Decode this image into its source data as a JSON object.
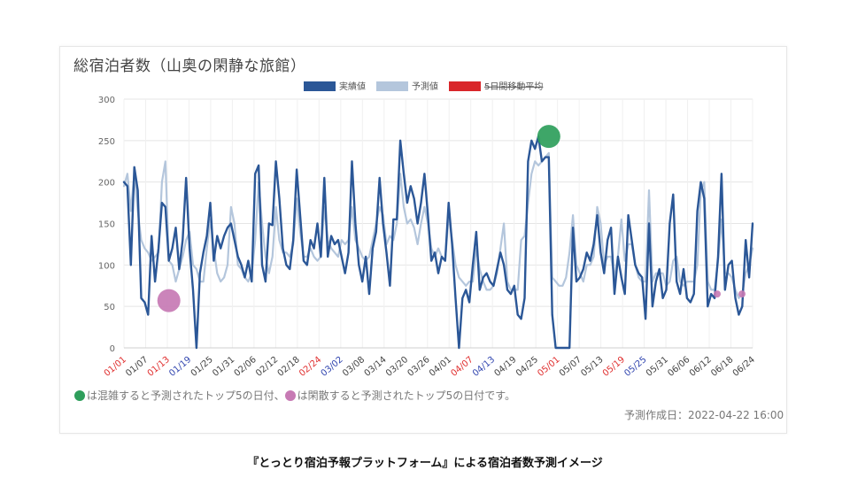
{
  "chart_data": {
    "type": "line",
    "title": "総宿泊者数（山奥の閑静な旅館）",
    "ylim": [
      0,
      300
    ],
    "yticks": [
      "300",
      "250",
      "200",
      "150",
      "100",
      "50",
      "0"
    ],
    "xticks": [
      {
        "label": "01/01",
        "color": "red"
      },
      {
        "label": "01/07",
        "color": "black"
      },
      {
        "label": "01/13",
        "color": "red"
      },
      {
        "label": "01/19",
        "color": "blue"
      },
      {
        "label": "01/25",
        "color": "black"
      },
      {
        "label": "01/31",
        "color": "black"
      },
      {
        "label": "02/06",
        "color": "black"
      },
      {
        "label": "02/12",
        "color": "black"
      },
      {
        "label": "02/18",
        "color": "black"
      },
      {
        "label": "02/24",
        "color": "red"
      },
      {
        "label": "03/02",
        "color": "blue"
      },
      {
        "label": "03/08",
        "color": "black"
      },
      {
        "label": "03/14",
        "color": "black"
      },
      {
        "label": "03/20",
        "color": "black"
      },
      {
        "label": "03/26",
        "color": "black"
      },
      {
        "label": "04/01",
        "color": "black"
      },
      {
        "label": "04/07",
        "color": "red"
      },
      {
        "label": "04/13",
        "color": "blue"
      },
      {
        "label": "04/19",
        "color": "black"
      },
      {
        "label": "04/25",
        "color": "black"
      },
      {
        "label": "05/01",
        "color": "red"
      },
      {
        "label": "05/07",
        "color": "black"
      },
      {
        "label": "05/13",
        "color": "black"
      },
      {
        "label": "05/19",
        "color": "red"
      },
      {
        "label": "05/25",
        "color": "blue"
      },
      {
        "label": "05/31",
        "color": "black"
      },
      {
        "label": "06/06",
        "color": "black"
      },
      {
        "label": "06/12",
        "color": "black"
      },
      {
        "label": "06/18",
        "color": "black"
      },
      {
        "label": "06/24",
        "color": "black"
      }
    ],
    "legend": [
      {
        "name": "実績値",
        "color": "#2b5797",
        "struck": false
      },
      {
        "name": "予測値",
        "color": "#b4c6dc",
        "struck": false
      },
      {
        "name": "5日間移動平均",
        "color": "#d9262a",
        "struck": true
      }
    ],
    "series": [
      {
        "name": "実績値",
        "color": "#2b5797",
        "values": [
          200,
          195,
          100,
          218,
          190,
          60,
          55,
          40,
          135,
          80,
          120,
          175,
          170,
          105,
          120,
          145,
          95,
          130,
          205,
          120,
          70,
          0,
          90,
          115,
          135,
          175,
          105,
          135,
          120,
          135,
          145,
          150,
          130,
          110,
          100,
          85,
          105,
          80,
          210,
          220,
          100,
          80,
          150,
          148,
          225,
          180,
          120,
          100,
          95,
          130,
          215,
          160,
          105,
          100,
          130,
          120,
          150,
          110,
          205,
          110,
          135,
          125,
          130,
          110,
          90,
          115,
          225,
          150,
          100,
          80,
          110,
          65,
          120,
          140,
          205,
          150,
          115,
          75,
          155,
          155,
          250,
          210,
          175,
          195,
          180,
          150,
          175,
          210,
          160,
          105,
          115,
          90,
          110,
          105,
          175,
          125,
          60,
          0,
          60,
          70,
          55,
          100,
          140,
          70,
          85,
          90,
          80,
          75,
          95,
          115,
          100,
          70,
          65,
          75,
          40,
          35,
          60,
          225,
          250,
          240,
          255,
          225,
          230,
          230,
          40,
          0,
          0,
          0,
          0,
          0,
          145,
          80,
          85,
          95,
          115,
          105,
          125,
          160,
          115,
          90,
          130,
          145,
          65,
          110,
          85,
          65,
          160,
          130,
          100,
          90,
          85,
          35,
          150,
          50,
          80,
          95,
          60,
          70,
          150,
          185,
          80,
          65,
          95,
          60,
          55,
          65,
          165,
          200,
          180,
          50,
          65,
          60,
          110,
          210,
          70,
          100,
          105,
          60,
          40,
          50,
          130,
          85,
          150
        ]
      },
      {
        "name": "予測値",
        "color": "#b4c6dc",
        "values": [
          195,
          210,
          165,
          210,
          165,
          130,
          120,
          115,
          105,
          110,
          115,
          200,
          225,
          105,
          100,
          80,
          95,
          110,
          130,
          140,
          100,
          95,
          80,
          80,
          120,
          155,
          120,
          90,
          80,
          85,
          100,
          170,
          150,
          100,
          95,
          85,
          80,
          90,
          130,
          200,
          150,
          110,
          90,
          110,
          170,
          130,
          115,
          115,
          110,
          125,
          180,
          140,
          110,
          110,
          120,
          110,
          105,
          110,
          170,
          130,
          120,
          115,
          110,
          130,
          125,
          130,
          170,
          130,
          120,
          110,
          105,
          110,
          130,
          150,
          170,
          160,
          125,
          135,
          130,
          150,
          210,
          170,
          150,
          155,
          145,
          125,
          150,
          170,
          150,
          120,
          110,
          120,
          110,
          105,
          160,
          130,
          100,
          85,
          80,
          75,
          80,
          80,
          120,
          95,
          80,
          70,
          70,
          75,
          90,
          120,
          150,
          80,
          70,
          70,
          70,
          130,
          135,
          175,
          210,
          225,
          220,
          225,
          230,
          235,
          85,
          80,
          75,
          75,
          85,
          115,
          160,
          100,
          90,
          80,
          100,
          100,
          110,
          170,
          150,
          100,
          110,
          110,
          85,
          110,
          155,
          105,
          125,
          125,
          100,
          85,
          80,
          80,
          190,
          80,
          90,
          90,
          90,
          75,
          80,
          105,
          110,
          80,
          75,
          80,
          80,
          80,
          100,
          190,
          200,
          80,
          70,
          70,
          105,
          155,
          90,
          90,
          85,
          70,
          60,
          65,
          90,
          100,
          120
        ]
      }
    ],
    "markers": [
      {
        "type": "congested",
        "x_index": 123,
        "y": 255
      },
      {
        "type": "quiet",
        "x_index": 13,
        "y": 57
      }
    ]
  },
  "footnote": {
    "congested_text": "は混雑すると予測されたトップ5の日付、",
    "quiet_text": "は閑散すると予測されたトップ5の日付です。",
    "congested_color": "#2e9e5b",
    "quiet_color": "#c77ab4"
  },
  "created": "予測作成日：2022-04-22 16:00",
  "caption": "『とっとり宿泊予報プラットフォーム』による宿泊者数予測イメージ"
}
